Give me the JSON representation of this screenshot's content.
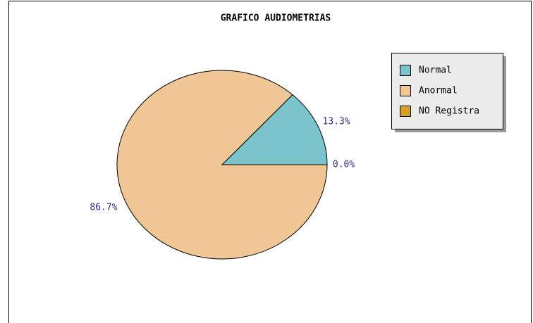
{
  "chart_data": {
    "type": "pie",
    "title": "GRAFICO AUDIOMETRIAS",
    "categories": [
      "Normal",
      "Anormal",
      "NO Registra"
    ],
    "values": [
      13.3,
      86.7,
      0.0
    ],
    "value_labels": [
      "13.3%",
      "86.7%",
      "0.0%"
    ],
    "colors": [
      "#7cc4cc",
      "#f0c794",
      "#d4a126"
    ],
    "legend": "right"
  }
}
